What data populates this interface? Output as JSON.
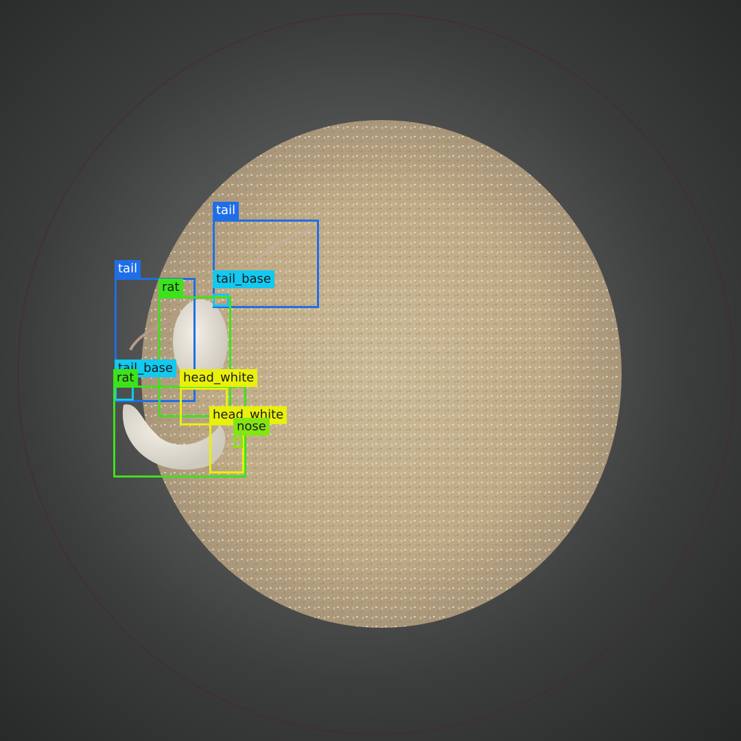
{
  "colors": {
    "tail": "#1f6ee8",
    "tail_base": "#12c9f0",
    "rat": "#3de31a",
    "head_white": "#e8f00c",
    "nose": "#84e414"
  },
  "labels": {
    "tail": "tail",
    "tail_base": "tail_base",
    "rat": "rat",
    "head_white": "head_white",
    "nose": "nose"
  },
  "detections": [
    {
      "cls": "tail"
    },
    {
      "cls": "tail_base"
    },
    {
      "cls": "tail"
    },
    {
      "cls": "rat"
    },
    {
      "cls": "tail_base"
    },
    {
      "cls": "rat"
    },
    {
      "cls": "head_white"
    },
    {
      "cls": "head_white"
    },
    {
      "cls": "nose"
    }
  ]
}
